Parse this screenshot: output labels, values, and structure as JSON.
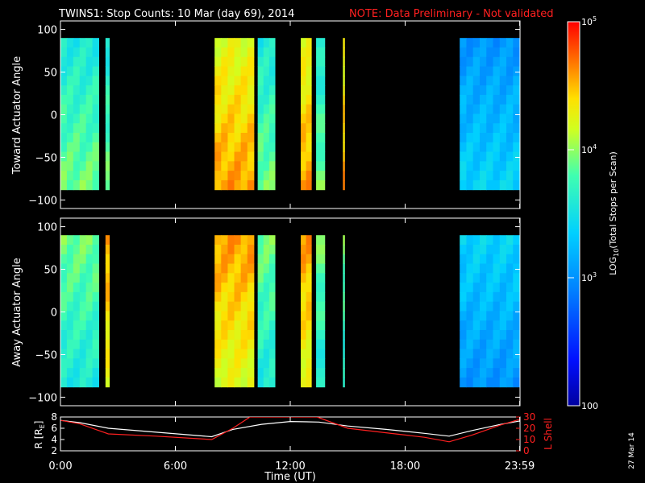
{
  "title": {
    "main": "TWINS1: Stop Counts: 10 Mar (day  69), 2014",
    "note": "NOTE: Data Preliminary - Not validated"
  },
  "colors": {
    "background": "#000000",
    "foreground": "#ffffff",
    "note": "#ff2020",
    "lshell": "#ff2020",
    "radius": "#ffffff"
  },
  "datestamp": "27 Mar 14",
  "chart_data": [
    {
      "type": "heatmap",
      "ylabel": "Toward Actuator Angle",
      "ylim": [
        -110,
        110
      ],
      "yticks": [
        100,
        50,
        0,
        -50,
        -100
      ],
      "xlim": [
        0,
        24
      ],
      "data_range": [
        -88,
        90
      ],
      "colorscale": "log",
      "color_range": [
        100,
        100000
      ],
      "segments": [
        {
          "start": 0.0,
          "end": 2.0,
          "level": "medium"
        },
        {
          "start": 2.35,
          "end": 2.55,
          "level": "medium"
        },
        {
          "start": 8.05,
          "end": 10.1,
          "level": "high"
        },
        {
          "start": 10.3,
          "end": 11.2,
          "level": "medium"
        },
        {
          "start": 12.55,
          "end": 13.1,
          "level": "high"
        },
        {
          "start": 13.35,
          "end": 13.8,
          "level": "medium"
        },
        {
          "start": 14.75,
          "end": 14.82,
          "level": "high"
        },
        {
          "start": 20.85,
          "end": 23.98,
          "level": "low"
        }
      ]
    },
    {
      "type": "heatmap",
      "ylabel": "Away Actuator Angle",
      "ylim": [
        -110,
        110
      ],
      "yticks": [
        100,
        50,
        0,
        -50,
        -100
      ],
      "xlim": [
        0,
        24
      ],
      "data_range": [
        -88,
        90
      ],
      "colorscale": "log",
      "color_range": [
        100,
        100000
      ],
      "segments": [
        {
          "start": 0.0,
          "end": 2.0,
          "level": "medium"
        },
        {
          "start": 2.35,
          "end": 2.55,
          "level": "high"
        },
        {
          "start": 8.05,
          "end": 10.1,
          "level": "high"
        },
        {
          "start": 10.3,
          "end": 11.2,
          "level": "medium"
        },
        {
          "start": 12.55,
          "end": 13.1,
          "level": "high"
        },
        {
          "start": 13.35,
          "end": 13.8,
          "level": "medium"
        },
        {
          "start": 14.75,
          "end": 14.82,
          "level": "medium"
        },
        {
          "start": 20.85,
          "end": 23.98,
          "level": "low"
        }
      ]
    },
    {
      "type": "line",
      "xlabel": "Time (UT)",
      "xlim": [
        0,
        24
      ],
      "xticks": [
        0,
        6,
        12,
        18,
        23.983
      ],
      "xticklabels": [
        "0:00",
        "6:00",
        "12:00",
        "18:00",
        "23:59"
      ],
      "left_axis": {
        "label": "R [R",
        "label_sub": "E",
        "label_end": "]",
        "ylim": [
          2,
          8
        ],
        "ticks": [
          2,
          4,
          6,
          8
        ]
      },
      "right_axis": {
        "label": "L Shell",
        "ylim": [
          0,
          30
        ],
        "ticks": [
          0,
          10,
          20,
          30
        ]
      },
      "series": [
        {
          "axis": "left",
          "x": [
            0,
            1,
            2.5,
            5,
            7.9,
            9,
            10.5,
            12,
            13.5,
            15,
            17,
            19,
            20.3,
            21.5,
            23,
            24
          ],
          "y": [
            7.4,
            7.0,
            6.0,
            5.3,
            4.5,
            5.8,
            6.7,
            7.2,
            7.1,
            6.4,
            5.8,
            5.1,
            4.6,
            5.6,
            6.7,
            7.3
          ]
        },
        {
          "axis": "right",
          "x": [
            0,
            1,
            2.5,
            5,
            7.9,
            9,
            9.9,
            13.4,
            15,
            17,
            19,
            20.3,
            21.5,
            23,
            24
          ],
          "y": [
            27,
            24,
            15,
            13,
            10,
            20,
            30,
            30,
            20,
            16,
            12,
            8,
            14,
            23,
            28
          ]
        }
      ]
    }
  ],
  "colorbar": {
    "label_prefix": "LOG",
    "label_sub": "10",
    "label_suffix": "(Total Stops per Scan)",
    "ticks": [
      {
        "value": 100000,
        "base": "10",
        "exp": "5"
      },
      {
        "value": 10000,
        "base": "10",
        "exp": "4"
      },
      {
        "value": 1000,
        "base": "10",
        "exp": "3"
      },
      {
        "value": 100,
        "base": "100",
        "exp": ""
      }
    ]
  }
}
